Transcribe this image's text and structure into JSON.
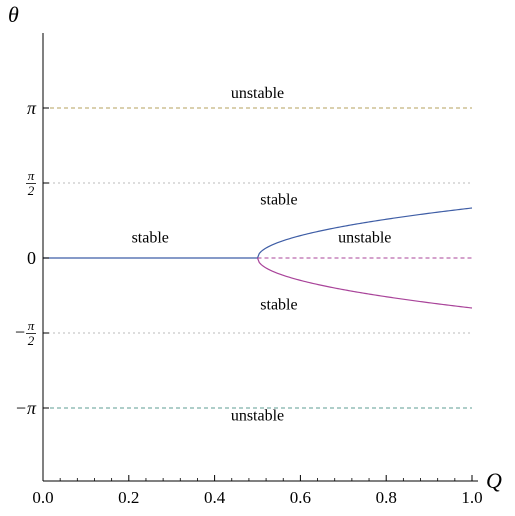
{
  "chart_data": {
    "type": "line",
    "xlabel": "Q",
    "ylabel": "θ",
    "xlim": [
      0,
      1
    ],
    "ylim": [
      -3.9,
      4.2
    ],
    "x_ticks": [
      {
        "value": 0,
        "label": "0.0"
      },
      {
        "value": 0.2,
        "label": "0.2"
      },
      {
        "value": 0.4,
        "label": "0.4"
      },
      {
        "value": 0.6,
        "label": "0.6"
      },
      {
        "value": 0.8,
        "label": "0.8"
      },
      {
        "value": 1.0,
        "label": "1.0"
      }
    ],
    "y_ticks": [
      {
        "value": 3.14159,
        "label": "π"
      },
      {
        "value": 1.5708,
        "label": "π/2",
        "sign": "",
        "numerator": "π",
        "denominator": "2"
      },
      {
        "value": 0,
        "label": "0"
      },
      {
        "value": -1.5708,
        "label": "−π/2",
        "sign": "−",
        "numerator": "π",
        "denominator": "2"
      },
      {
        "value": -3.14159,
        "label": "−π"
      }
    ],
    "series": [
      {
        "color": "#3f5ea6",
        "style": "solid",
        "x": [
          0,
          0.5
        ],
        "y": [
          0,
          0
        ]
      },
      {
        "color": "#3f5ea6",
        "style": "solid",
        "curve": "upper-branch",
        "x": [
          0.5,
          0.55,
          0.6,
          0.7,
          0.8,
          0.9,
          1.0
        ],
        "y": [
          0,
          0.43,
          0.59,
          0.8,
          0.93,
          1.03,
          1.0472
        ]
      },
      {
        "color": "#a9449a",
        "style": "solid",
        "curve": "lower-branch",
        "x": [
          0.5,
          0.55,
          0.6,
          0.7,
          0.8,
          0.9,
          1.0
        ],
        "y": [
          0,
          -0.43,
          -0.59,
          -0.8,
          -0.93,
          -1.03,
          -1.0472
        ]
      },
      {
        "color": "#a9449a",
        "style": "dashed",
        "x": [
          0.5,
          1.0
        ],
        "y": [
          0,
          0
        ]
      },
      {
        "color": "#b5a25d",
        "style": "dashed",
        "x": [
          0,
          1.0
        ],
        "y": [
          3.14159,
          3.14159
        ]
      },
      {
        "color": "#5c9e93",
        "style": "dashed",
        "x": [
          0,
          1.0
        ],
        "y": [
          -3.14159,
          -3.14159
        ]
      },
      {
        "color": "#bbbbbb",
        "style": "dotted",
        "x": [
          0,
          1.0
        ],
        "y": [
          1.5708,
          1.5708
        ]
      },
      {
        "color": "#bbbbbb",
        "style": "dotted",
        "x": [
          0,
          1.0
        ],
        "y": [
          -1.5708,
          -1.5708
        ]
      }
    ],
    "annotations": [
      {
        "text": "unstable",
        "x": 0.5,
        "y": 3.35
      },
      {
        "text": "stable",
        "x": 0.55,
        "y": 1.12
      },
      {
        "text": "stable",
        "x": 0.25,
        "y": 0.32
      },
      {
        "text": "unstable",
        "x": 0.75,
        "y": 0.32
      },
      {
        "text": "stable",
        "x": 0.55,
        "y": -1.08
      },
      {
        "text": "unstable",
        "x": 0.5,
        "y": -3.4
      }
    ]
  }
}
